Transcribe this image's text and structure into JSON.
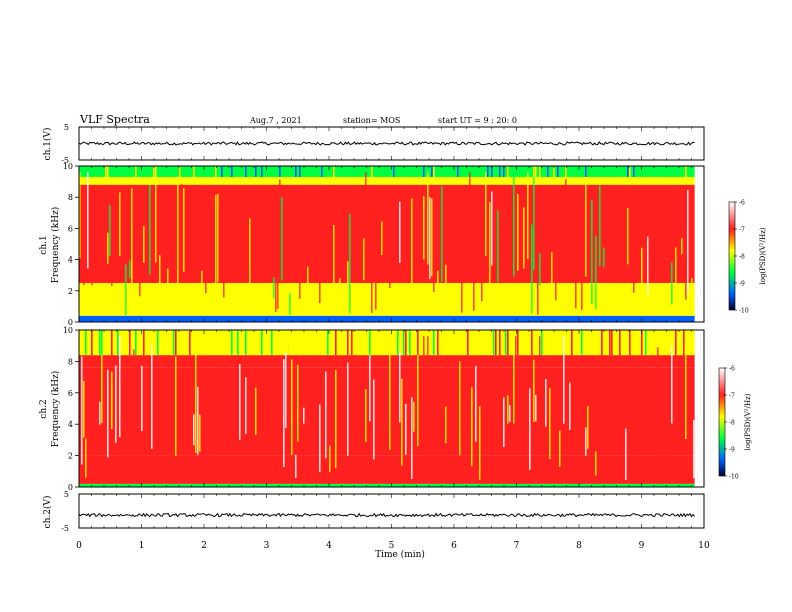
{
  "header": {
    "title": "VLF Spectra",
    "date": "Aug.7 , 2021",
    "station": "station= MOS",
    "start_time": "start UT = 9 : 20: 0"
  },
  "panels": {
    "ch1_wave_label": "ch.1(V)",
    "ch1_spec_label": "ch.1",
    "ch2_spec_label": "ch.2",
    "ch2_wave_label": "ch.2(V)",
    "freq_label": "Frequency (kHz)"
  },
  "colorbar": {
    "label": "log(PSD)(V²/Hz)",
    "ticks": [
      "-6",
      "-7",
      "-8",
      "-9",
      "-10"
    ],
    "colors": [
      "#ffffff",
      "#ff2020",
      "#ffff00",
      "#00ff40",
      "#0060ff",
      "#000030"
    ]
  },
  "xaxis": {
    "label": "Time (min)",
    "ticks": [
      "0",
      "1",
      "2",
      "3",
      "4",
      "5",
      "6",
      "7",
      "8",
      "9",
      "10"
    ]
  },
  "chart_data": [
    {
      "type": "line",
      "title": "ch.1(V)",
      "xlabel": "",
      "ylabel": "ch.1(V)",
      "xlim": [
        0,
        10
      ],
      "ylim": [
        -5,
        5
      ],
      "yticks": [
        "5",
        "-5"
      ],
      "series": [
        {
          "values": [
            0.0,
            0.0
          ]
        }
      ],
      "x": [
        0,
        9.85
      ]
    },
    {
      "type": "heatmap",
      "title": "ch.1",
      "ylabel": "Frequency (kHz)",
      "xlim": [
        0,
        10
      ],
      "ylim": [
        0,
        10
      ],
      "yticks": [
        "0",
        "2",
        "4",
        "6",
        "8",
        "10"
      ],
      "zlim": [
        -10,
        -6
      ],
      "bands": [
        {
          "from": 0,
          "to": 0.4,
          "level": -9.5
        },
        {
          "from": 0.4,
          "to": 2.5,
          "level": -7.3
        },
        {
          "from": 2.5,
          "to": 8.8,
          "level": -7.0
        },
        {
          "from": 8.8,
          "to": 9.3,
          "level": -7.6
        },
        {
          "from": 9.3,
          "to": 10,
          "level": -8.4
        }
      ]
    },
    {
      "type": "heatmap",
      "title": "ch.2",
      "ylabel": "Frequency (kHz)",
      "xlim": [
        0,
        10
      ],
      "ylim": [
        0,
        10
      ],
      "yticks": [
        "0",
        "2",
        "4",
        "6",
        "8",
        "10"
      ],
      "zlim": [
        -10,
        -6
      ],
      "bands": [
        {
          "from": 0,
          "to": 0.2,
          "level": -8.7
        },
        {
          "from": 0.2,
          "to": 2.0,
          "level": -6.9
        },
        {
          "from": 2.0,
          "to": 7.6,
          "level": -6.4
        },
        {
          "from": 7.6,
          "to": 8.4,
          "level": -6.9
        },
        {
          "from": 8.4,
          "to": 10,
          "level": -7.7
        }
      ]
    },
    {
      "type": "line",
      "title": "ch.2(V)",
      "xlabel": "Time (min)",
      "ylabel": "ch.2(V)",
      "xlim": [
        0,
        10
      ],
      "ylim": [
        -5,
        5
      ],
      "yticks": [
        "5",
        "-5"
      ],
      "series": [
        {
          "values": [
            -1.2,
            -1.2
          ]
        }
      ],
      "x": [
        0,
        9.85
      ]
    }
  ]
}
